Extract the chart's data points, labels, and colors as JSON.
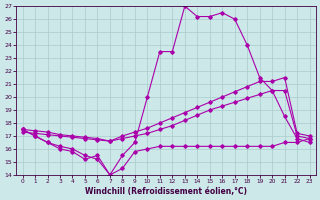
{
  "xlabel": "Windchill (Refroidissement éolien,°C)",
  "bg_color": "#cce8e8",
  "grid_color": "#aacccc",
  "line_color": "#aa00aa",
  "xlim": [
    -0.5,
    23.5
  ],
  "ylim": [
    14,
    27
  ],
  "yticks": [
    14,
    15,
    16,
    17,
    18,
    19,
    20,
    21,
    22,
    23,
    24,
    25,
    26,
    27
  ],
  "xticks": [
    0,
    1,
    2,
    3,
    4,
    5,
    6,
    7,
    8,
    9,
    10,
    11,
    12,
    13,
    14,
    15,
    16,
    17,
    18,
    19,
    20,
    21,
    22,
    23
  ],
  "series1_x": [
    0,
    1,
    2,
    3,
    4,
    5,
    6,
    7,
    8,
    9,
    10,
    11,
    12,
    13,
    14,
    15,
    16,
    17,
    18,
    19,
    20,
    21,
    22,
    23
  ],
  "series1_y": [
    17.5,
    17.0,
    16.5,
    16.2,
    16.0,
    15.5,
    15.2,
    14.0,
    14.5,
    15.8,
    16.0,
    16.2,
    16.2,
    16.2,
    16.2,
    16.2,
    16.2,
    16.2,
    16.2,
    16.2,
    16.2,
    16.5,
    16.5,
    16.8
  ],
  "series2_x": [
    0,
    1,
    2,
    3,
    4,
    5,
    6,
    7,
    8,
    9,
    10,
    11,
    12,
    13,
    14,
    15,
    16,
    17,
    18,
    19,
    20,
    21,
    22,
    23
  ],
  "series2_y": [
    17.3,
    17.2,
    17.1,
    17.0,
    16.9,
    16.8,
    16.7,
    16.6,
    16.8,
    17.0,
    17.2,
    17.5,
    17.8,
    18.2,
    18.6,
    19.0,
    19.3,
    19.6,
    19.9,
    20.2,
    20.5,
    20.5,
    17.0,
    16.8
  ],
  "series3_x": [
    0,
    1,
    2,
    3,
    4,
    5,
    6,
    7,
    8,
    9,
    10,
    11,
    12,
    13,
    14,
    15,
    16,
    17,
    18,
    19,
    20,
    21,
    22,
    23
  ],
  "series3_y": [
    17.5,
    17.4,
    17.3,
    17.1,
    17.0,
    16.9,
    16.8,
    16.6,
    17.0,
    17.3,
    17.6,
    18.0,
    18.4,
    18.8,
    19.2,
    19.6,
    20.0,
    20.4,
    20.8,
    21.2,
    21.2,
    21.5,
    17.2,
    17.0
  ],
  "series4_x": [
    0,
    1,
    2,
    3,
    4,
    5,
    6,
    7,
    8,
    9,
    10,
    11,
    12,
    13,
    14,
    15,
    16,
    17,
    18,
    19,
    20,
    21,
    22,
    23
  ],
  "series4_y": [
    17.5,
    17.0,
    16.5,
    16.0,
    15.8,
    15.2,
    15.5,
    14.0,
    15.5,
    16.5,
    20.0,
    23.5,
    23.5,
    27.0,
    26.2,
    26.2,
    26.5,
    26.0,
    24.0,
    21.5,
    20.5,
    18.5,
    16.8,
    16.5
  ]
}
